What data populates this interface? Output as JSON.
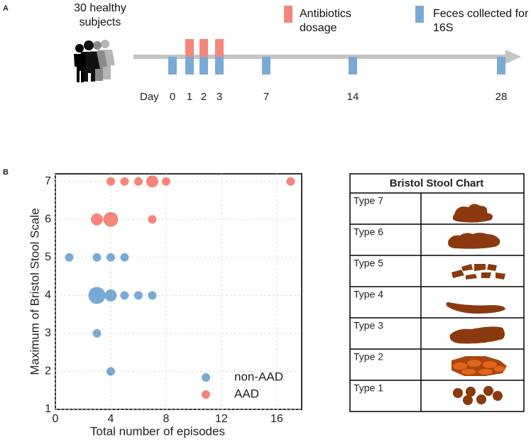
{
  "panel_a": {
    "label": "A",
    "subjects": "30 healthy subjects",
    "legend": [
      {
        "label": "Antibiotics dosage",
        "color": "#f4877a"
      },
      {
        "label": "Feces collected for 16S",
        "color": "#7aaad4"
      }
    ],
    "day_label": "Day",
    "days": [
      0,
      1,
      2,
      3,
      7,
      14,
      28
    ],
    "antibiotic_days": [
      1,
      2,
      3
    ]
  },
  "chart_data": {
    "type": "scatter",
    "panel_label": "B",
    "xlabel": "Total number of episodes",
    "ylabel": "Maximum of Bristol Stool Scale",
    "xlim": [
      0,
      17.8
    ],
    "ylim": [
      1,
      7.2
    ],
    "xticks": [
      0,
      4,
      8,
      12,
      16
    ],
    "yticks": [
      1,
      2,
      3,
      4,
      5,
      6,
      7
    ],
    "grid": true,
    "legend": "lower right",
    "series": [
      {
        "name": "non-AAD",
        "color": "#79aad6",
        "x": [
          1,
          3,
          4,
          5,
          3,
          4,
          5,
          6,
          7,
          3,
          4
        ],
        "values": [
          5,
          5,
          5,
          5,
          4,
          4,
          4,
          4,
          4,
          3,
          2
        ],
        "sizes": [
          1,
          1,
          1,
          1,
          4,
          2,
          1,
          1,
          1,
          1,
          1
        ]
      },
      {
        "name": "AAD",
        "color": "#f4877a",
        "x": [
          4,
          5,
          6,
          7,
          8,
          17,
          3,
          4,
          7
        ],
        "values": [
          7,
          7,
          7,
          7,
          7,
          7,
          6,
          6,
          6
        ],
        "sizes": [
          1,
          1,
          1,
          2,
          1,
          1,
          2,
          3,
          1
        ]
      }
    ]
  },
  "bristol": {
    "title": "Bristol Stool Chart",
    "rows": [
      "Type 7",
      "Type 6",
      "Type 5",
      "Type 4",
      "Type 3",
      "Type 2",
      "Type 1"
    ]
  }
}
